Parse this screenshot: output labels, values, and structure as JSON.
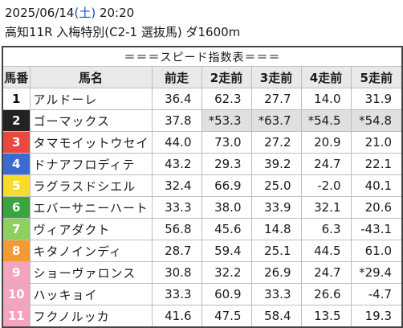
{
  "header": {
    "date": "2025/06/14",
    "dow": "(土)",
    "time": "20:20",
    "race_line": "高知11R 入梅特別(C2-1 選抜馬) ダ1600m"
  },
  "table": {
    "title": "＝＝＝スピード指数表＝＝＝",
    "columns": [
      "馬番",
      "馬名",
      "前走",
      "2走前",
      "3走前",
      "4走前",
      "5走前"
    ],
    "highlight_color": "#e0e0e0",
    "rows": [
      {
        "num": "1",
        "name": "アルドーレ",
        "v": [
          "36.4",
          "62.3",
          "27.7",
          "14.0",
          "31.9"
        ],
        "hl": false
      },
      {
        "num": "2",
        "name": "ゴーマックス",
        "v": [
          "37.8",
          "*53.3",
          "*63.7",
          "*54.5",
          "*54.8"
        ],
        "hl": true
      },
      {
        "num": "3",
        "name": "タマモイットウセイ",
        "v": [
          "44.0",
          "73.0",
          "27.2",
          "20.9",
          "21.0"
        ],
        "hl": false
      },
      {
        "num": "4",
        "name": "ドナアフロディテ",
        "v": [
          "43.2",
          "29.3",
          "39.2",
          "24.7",
          "22.1"
        ],
        "hl": false
      },
      {
        "num": "5",
        "name": "ラグラスドシエル",
        "v": [
          "32.4",
          "66.9",
          "25.0",
          "-2.0",
          "40.1"
        ],
        "hl": false
      },
      {
        "num": "6",
        "name": "エバーサニーハート",
        "v": [
          "33.3",
          "38.0",
          "33.9",
          "32.1",
          "20.6"
        ],
        "hl": false
      },
      {
        "num": "7",
        "name": "ヴィアダクト",
        "v": [
          "56.8",
          "45.6",
          "14.8",
          "6.3",
          "-43.1"
        ],
        "hl": false
      },
      {
        "num": "8",
        "name": "キタノインディ",
        "v": [
          "28.7",
          "59.4",
          "25.1",
          "44.5",
          "61.0"
        ],
        "hl": false
      },
      {
        "num": "9",
        "name": "ショーヴァロンス",
        "v": [
          "30.8",
          "32.2",
          "26.9",
          "24.7",
          "*29.4"
        ],
        "hl": false
      },
      {
        "num": "10",
        "name": "ハッキョイ",
        "v": [
          "33.3",
          "60.9",
          "33.3",
          "26.6",
          "-4.7"
        ],
        "hl": false
      },
      {
        "num": "11",
        "name": "フクノルッカ",
        "v": [
          "41.6",
          "47.5",
          "58.4",
          "13.5",
          "19.3"
        ],
        "hl": false
      }
    ]
  }
}
